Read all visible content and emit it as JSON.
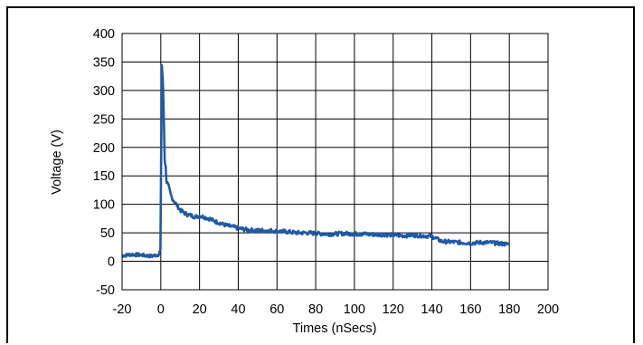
{
  "chart_data": {
    "type": "line",
    "title": "",
    "xlabel": "Times (nSecs)",
    "ylabel": "Voltage (V)",
    "xlim": [
      -20,
      200
    ],
    "ylim": [
      -50,
      400
    ],
    "xticks": [
      -20,
      0,
      20,
      40,
      60,
      80,
      100,
      120,
      140,
      160,
      180,
      200
    ],
    "yticks": [
      -50,
      0,
      50,
      100,
      150,
      200,
      250,
      300,
      350,
      400
    ],
    "grid": true,
    "legend": "none",
    "series": [
      {
        "color": "#1f5aa6",
        "x": [
          -20,
          -15,
          -10,
          -5,
          -1,
          -0.2,
          0,
          0.5,
          1,
          1.5,
          2,
          2.5,
          3,
          4,
          5,
          6,
          8,
          10,
          12,
          14,
          16,
          18,
          20,
          22,
          25,
          28,
          30,
          32,
          35,
          38,
          40,
          45,
          50,
          55,
          60,
          65,
          70,
          75,
          80,
          85,
          90,
          95,
          100,
          105,
          110,
          115,
          120,
          125,
          130,
          135,
          140,
          145,
          150,
          155,
          160,
          165,
          170,
          175,
          180
        ],
        "y": [
          10,
          12,
          11,
          9,
          12,
          20,
          100,
          345,
          320,
          260,
          180,
          165,
          140,
          130,
          118,
          110,
          100,
          90,
          85,
          82,
          80,
          78,
          80,
          78,
          75,
          70,
          68,
          65,
          62,
          60,
          58,
          55,
          54,
          54,
          53,
          52,
          50,
          50,
          49,
          48,
          48,
          49,
          48,
          48,
          47,
          47,
          46,
          45,
          46,
          45,
          44,
          35,
          34,
          33,
          32,
          33,
          33,
          31,
          30
        ]
      }
    ]
  }
}
